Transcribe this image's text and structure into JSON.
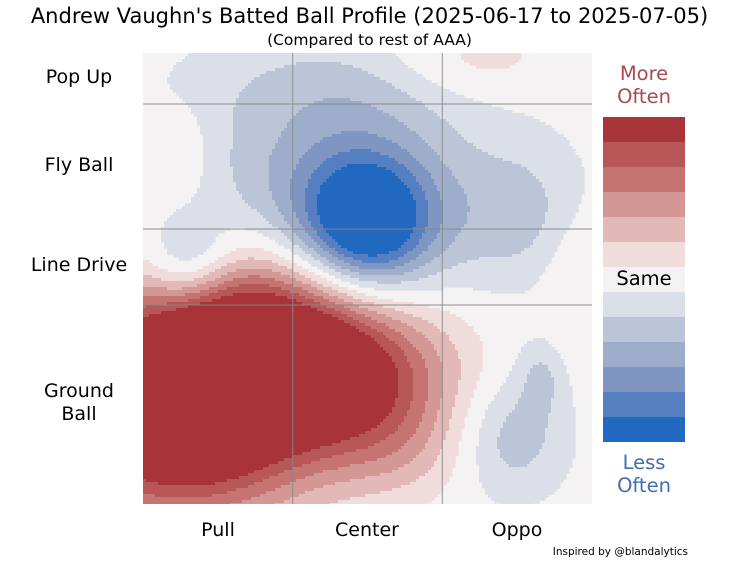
{
  "chart_data": {
    "type": "heatmap",
    "title": "Andrew Vaughn's Batted Ball Profile (2025-06-17 to 2025-07-05)",
    "subtitle": "(Compared to rest of AAA)",
    "x_categories": [
      "Pull",
      "Center",
      "Oppo"
    ],
    "y_categories": [
      "Pop Up",
      "Fly Ball",
      "Line Drive",
      "Ground Ball"
    ],
    "grid": true,
    "legend": {
      "top": "More Often",
      "middle": "Same",
      "bottom": "Less Often",
      "placement": "right",
      "levels": [
        "#a83338",
        "#b85758",
        "#c67471",
        "#d49894",
        "#e3b9b7",
        "#f0dcdb",
        "#f4f2f3",
        "#dbdfe7",
        "#bcc5d7",
        "#9dadca",
        "#7e96c1",
        "#557fc0",
        "#2068c0"
      ]
    },
    "blobs": [
      {
        "cx": 0.08,
        "cy": 0.22,
        "rx": 0.06,
        "ry": 0.08,
        "val": 1.2
      },
      {
        "cx": 0.14,
        "cy": 0.72,
        "rx": 0.22,
        "ry": 0.16,
        "val": 6.5
      },
      {
        "cx": 0.3,
        "cy": 0.63,
        "rx": 0.2,
        "ry": 0.13,
        "val": 5.0
      },
      {
        "cx": 0.06,
        "cy": 0.86,
        "rx": 0.2,
        "ry": 0.14,
        "val": 4.5
      },
      {
        "cx": 0.48,
        "cy": 0.73,
        "rx": 0.16,
        "ry": 0.1,
        "val": 3.5
      },
      {
        "cx": 0.56,
        "cy": 0.88,
        "rx": 0.12,
        "ry": 0.08,
        "val": 1.6
      },
      {
        "cx": 0.72,
        "cy": 0.02,
        "rx": 0.14,
        "ry": 0.06,
        "val": 1.4
      },
      {
        "cx": 0.98,
        "cy": 0.5,
        "rx": 0.06,
        "ry": 0.12,
        "val": 1.4
      },
      {
        "cx": 0.5,
        "cy": 0.38,
        "rx": 0.1,
        "ry": 0.1,
        "val": -6.2
      },
      {
        "cx": 0.47,
        "cy": 0.32,
        "rx": 0.18,
        "ry": 0.18,
        "val": -2.6
      },
      {
        "cx": 0.1,
        "cy": 0.47,
        "rx": 0.07,
        "ry": 0.07,
        "val": -3.0
      },
      {
        "cx": 0.25,
        "cy": 0.25,
        "rx": 0.28,
        "ry": 0.16,
        "val": -1.1
      },
      {
        "cx": 0.85,
        "cy": 0.36,
        "rx": 0.12,
        "ry": 0.12,
        "val": -1.8
      },
      {
        "cx": 0.82,
        "cy": 0.85,
        "rx": 0.09,
        "ry": 0.1,
        "val": -2.3
      },
      {
        "cx": 0.89,
        "cy": 0.71,
        "rx": 0.04,
        "ry": 0.06,
        "val": -1.5
      },
      {
        "cx": 0.45,
        "cy": 0.06,
        "rx": 0.25,
        "ry": 0.08,
        "val": -0.9
      }
    ]
  },
  "credit": "Inspired by @blandalytics"
}
